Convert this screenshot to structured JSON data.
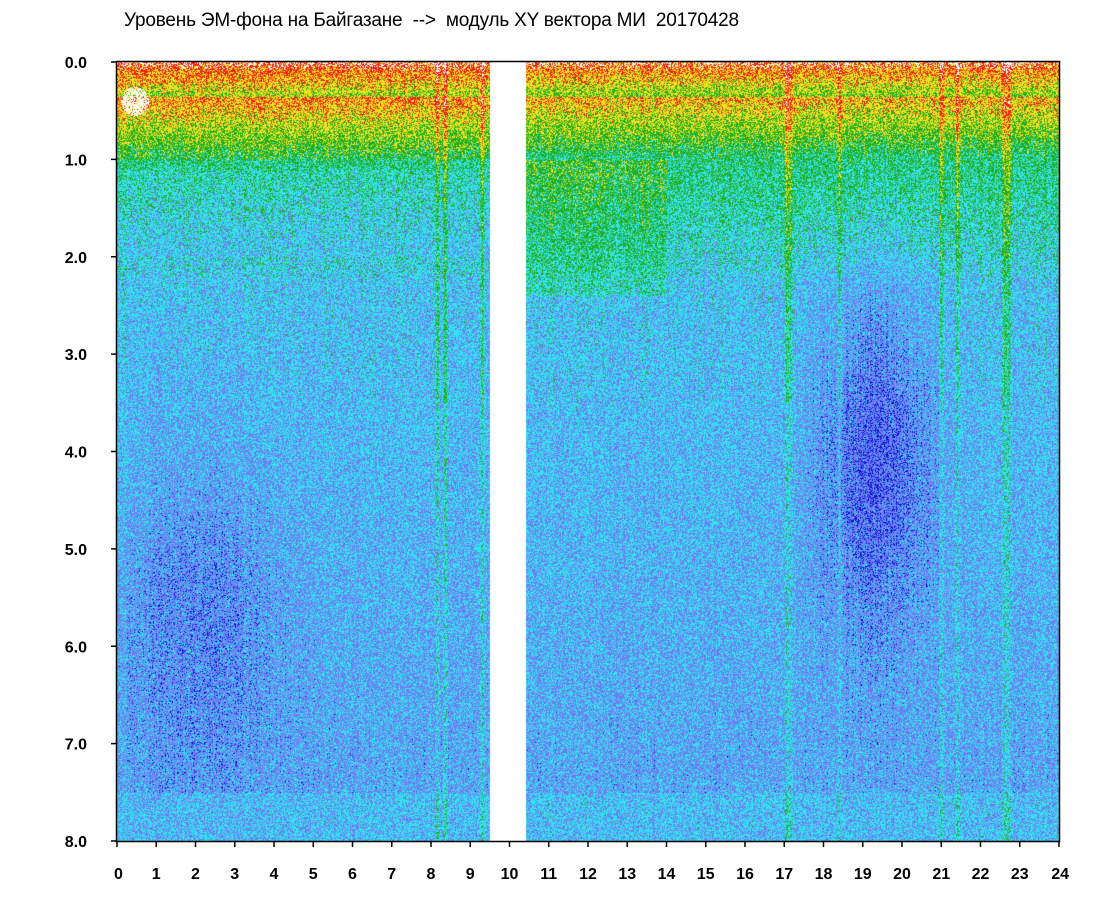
{
  "chart_data": {
    "type": "heatmap",
    "title": "Уровень ЭМ-фона на Байгазане  -->  модуль XY вектора МИ  20170428",
    "xlim": [
      0,
      24
    ],
    "ylim": [
      0,
      8
    ],
    "y_inverted": true,
    "x_ticks": [
      "0",
      "1",
      "2",
      "3",
      "4",
      "5",
      "6",
      "7",
      "8",
      "9",
      "10",
      "11",
      "12",
      "13",
      "14",
      "15",
      "16",
      "17",
      "18",
      "19",
      "20",
      "21",
      "22",
      "23",
      "24"
    ],
    "y_ticks": [
      "0.0",
      "1.0",
      "2.0",
      "3.0",
      "4.0",
      "5.0",
      "6.0",
      "7.0",
      "8.0"
    ],
    "no_data_intervals": [
      [
        9.5,
        10.4
      ]
    ],
    "color_scale": [
      "#1010d8",
      "#6a80f0",
      "#36e0f0",
      "#20b020",
      "#f0e020",
      "#f02010",
      "#ffffff"
    ],
    "grid": false,
    "legend": "none"
  }
}
